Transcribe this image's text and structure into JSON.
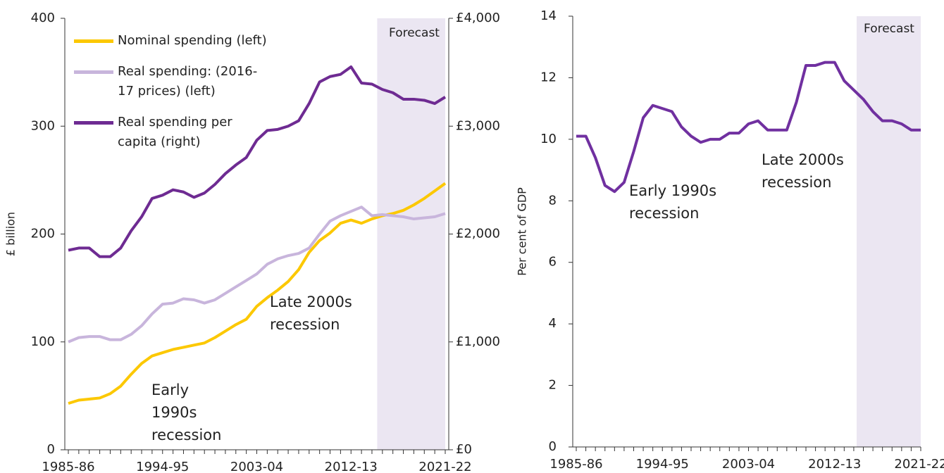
{
  "chart_data": [
    {
      "type": "line",
      "categories": [
        "1985-86",
        null,
        null,
        null,
        null,
        null,
        null,
        null,
        null,
        "1994-95",
        null,
        null,
        null,
        null,
        null,
        null,
        null,
        null,
        "2003-04",
        null,
        null,
        null,
        null,
        null,
        null,
        null,
        null,
        "2012-13",
        null,
        null,
        null,
        null,
        null,
        null,
        null,
        null,
        "2021-22"
      ],
      "series": [
        {
          "name": "Nominal spending (left)",
          "color": "#fcc800",
          "values": [
            43,
            46,
            47,
            48,
            52,
            59,
            70,
            80,
            87,
            90,
            93,
            95,
            97,
            99,
            104,
            110,
            116,
            121,
            133,
            141,
            148,
            156,
            167,
            183,
            194,
            201,
            210,
            213,
            210,
            214,
            217,
            219,
            222,
            227,
            233,
            240,
            247
          ]
        },
        {
          "name": "Real spending: (2016-17 prices) (left)",
          "color": "#c8b5dc",
          "values": [
            100,
            104,
            105,
            105,
            102,
            102,
            107,
            115,
            126,
            135,
            136,
            140,
            139,
            136,
            139,
            145,
            151,
            157,
            163,
            172,
            177,
            180,
            182,
            187,
            200,
            212,
            217,
            221,
            225,
            217,
            218,
            217,
            216,
            214,
            215,
            216,
            219
          ]
        },
        {
          "name": "Real spending per capita  (right)",
          "color": "#6e2b92",
          "axis": "y2",
          "values": [
            1850,
            1870,
            1870,
            1790,
            1790,
            1870,
            2030,
            2160,
            2330,
            2360,
            2410,
            2390,
            2340,
            2380,
            2460,
            2560,
            2640,
            2710,
            2870,
            2960,
            2970,
            3000,
            3050,
            3210,
            3410,
            3460,
            3480,
            3550,
            3400,
            3390,
            3340,
            3310,
            3250,
            3250,
            3240,
            3210,
            3270
          ]
        }
      ],
      "ylabel": "£ billion",
      "ylim": [
        0,
        400
      ],
      "yticks": [
        0,
        100,
        200,
        300,
        400
      ],
      "y2lim": [
        0,
        4000
      ],
      "y2ticks": [
        {
          "value": 0,
          "label": "£0"
        },
        {
          "value": 1000,
          "label": "£1,000"
        },
        {
          "value": 2000,
          "label": "£2,000"
        },
        {
          "value": 3000,
          "label": "£3,000"
        },
        {
          "value": 4000,
          "label": "£4,000"
        }
      ],
      "forecast_label": "Forecast",
      "annotations": [
        {
          "lines": [
            "Early",
            "1990s",
            "recession"
          ]
        },
        {
          "lines": [
            "Late 2000s",
            "recession"
          ]
        }
      ]
    },
    {
      "type": "line",
      "categories": [
        "1985-86",
        null,
        null,
        null,
        null,
        null,
        null,
        null,
        null,
        "1994-95",
        null,
        null,
        null,
        null,
        null,
        null,
        null,
        null,
        "2003-04",
        null,
        null,
        null,
        null,
        null,
        null,
        null,
        null,
        "2012-13",
        null,
        null,
        null,
        null,
        null,
        null,
        null,
        null,
        "2021-22"
      ],
      "series": [
        {
          "color": "#7030a0",
          "values": [
            10.1,
            10.1,
            9.4,
            8.5,
            8.3,
            8.6,
            9.6,
            10.7,
            11.1,
            11.0,
            10.9,
            10.4,
            10.1,
            9.9,
            10.0,
            10.0,
            10.2,
            10.2,
            10.5,
            10.6,
            10.3,
            10.3,
            10.3,
            11.2,
            12.4,
            12.4,
            12.5,
            12.5,
            11.9,
            11.6,
            11.3,
            10.9,
            10.6,
            10.6,
            10.5,
            10.3,
            10.3
          ]
        }
      ],
      "ylabel": "Per cent of GDP",
      "ylim": [
        0,
        14
      ],
      "yticks": [
        0,
        2,
        4,
        6,
        8,
        10,
        12,
        14
      ],
      "forecast_label": "Forecast",
      "annotations": [
        {
          "lines": [
            "Early 1990s",
            "recession"
          ]
        },
        {
          "lines": [
            "Late 2000s",
            "recession"
          ]
        }
      ]
    }
  ]
}
